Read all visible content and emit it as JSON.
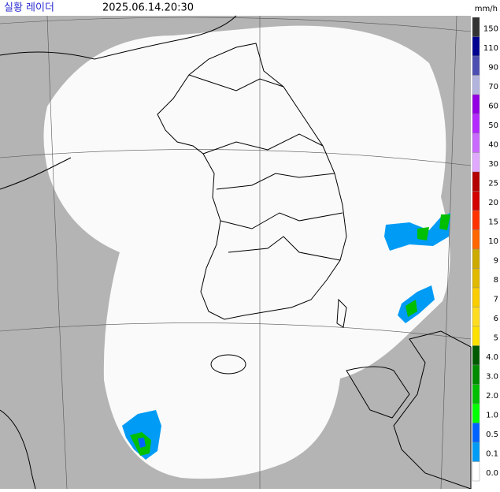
{
  "header": {
    "title": "실황 레이더",
    "time": "2025.06.14.20:30",
    "unit": "mm/h"
  },
  "legend": [
    {
      "label": "150",
      "color": "#333333"
    },
    {
      "label": "110",
      "color": "#000390"
    },
    {
      "label": "90",
      "color": "#4c4eb1"
    },
    {
      "label": "70",
      "color": "#b3b4de"
    },
    {
      "label": "60",
      "color": "#9300e4"
    },
    {
      "label": "50",
      "color": "#b329ff"
    },
    {
      "label": "40",
      "color": "#c969ff"
    },
    {
      "label": "30",
      "color": "#e0a9ff"
    },
    {
      "label": "25",
      "color": "#b40000"
    },
    {
      "label": "20",
      "color": "#d20000"
    },
    {
      "label": "15",
      "color": "#ff3200"
    },
    {
      "label": "10",
      "color": "#ff6600"
    },
    {
      "label": "9",
      "color": "#ccaa00"
    },
    {
      "label": "8",
      "color": "#e0b900"
    },
    {
      "label": "7",
      "color": "#f9cd00"
    },
    {
      "label": "6",
      "color": "#ffdc1f"
    },
    {
      "label": "5",
      "color": "#ffe100"
    },
    {
      "label": "4.0",
      "color": "#005a00"
    },
    {
      "label": "3.0",
      "color": "#008c00"
    },
    {
      "label": "2.0",
      "color": "#00be00"
    },
    {
      "label": "1.0",
      "color": "#00ff00"
    },
    {
      "label": "0.5",
      "color": "#0063ff"
    },
    {
      "label": "0.1",
      "color": "#009bf5"
    },
    {
      "label": "0.0",
      "color": "#ffffff"
    }
  ]
}
